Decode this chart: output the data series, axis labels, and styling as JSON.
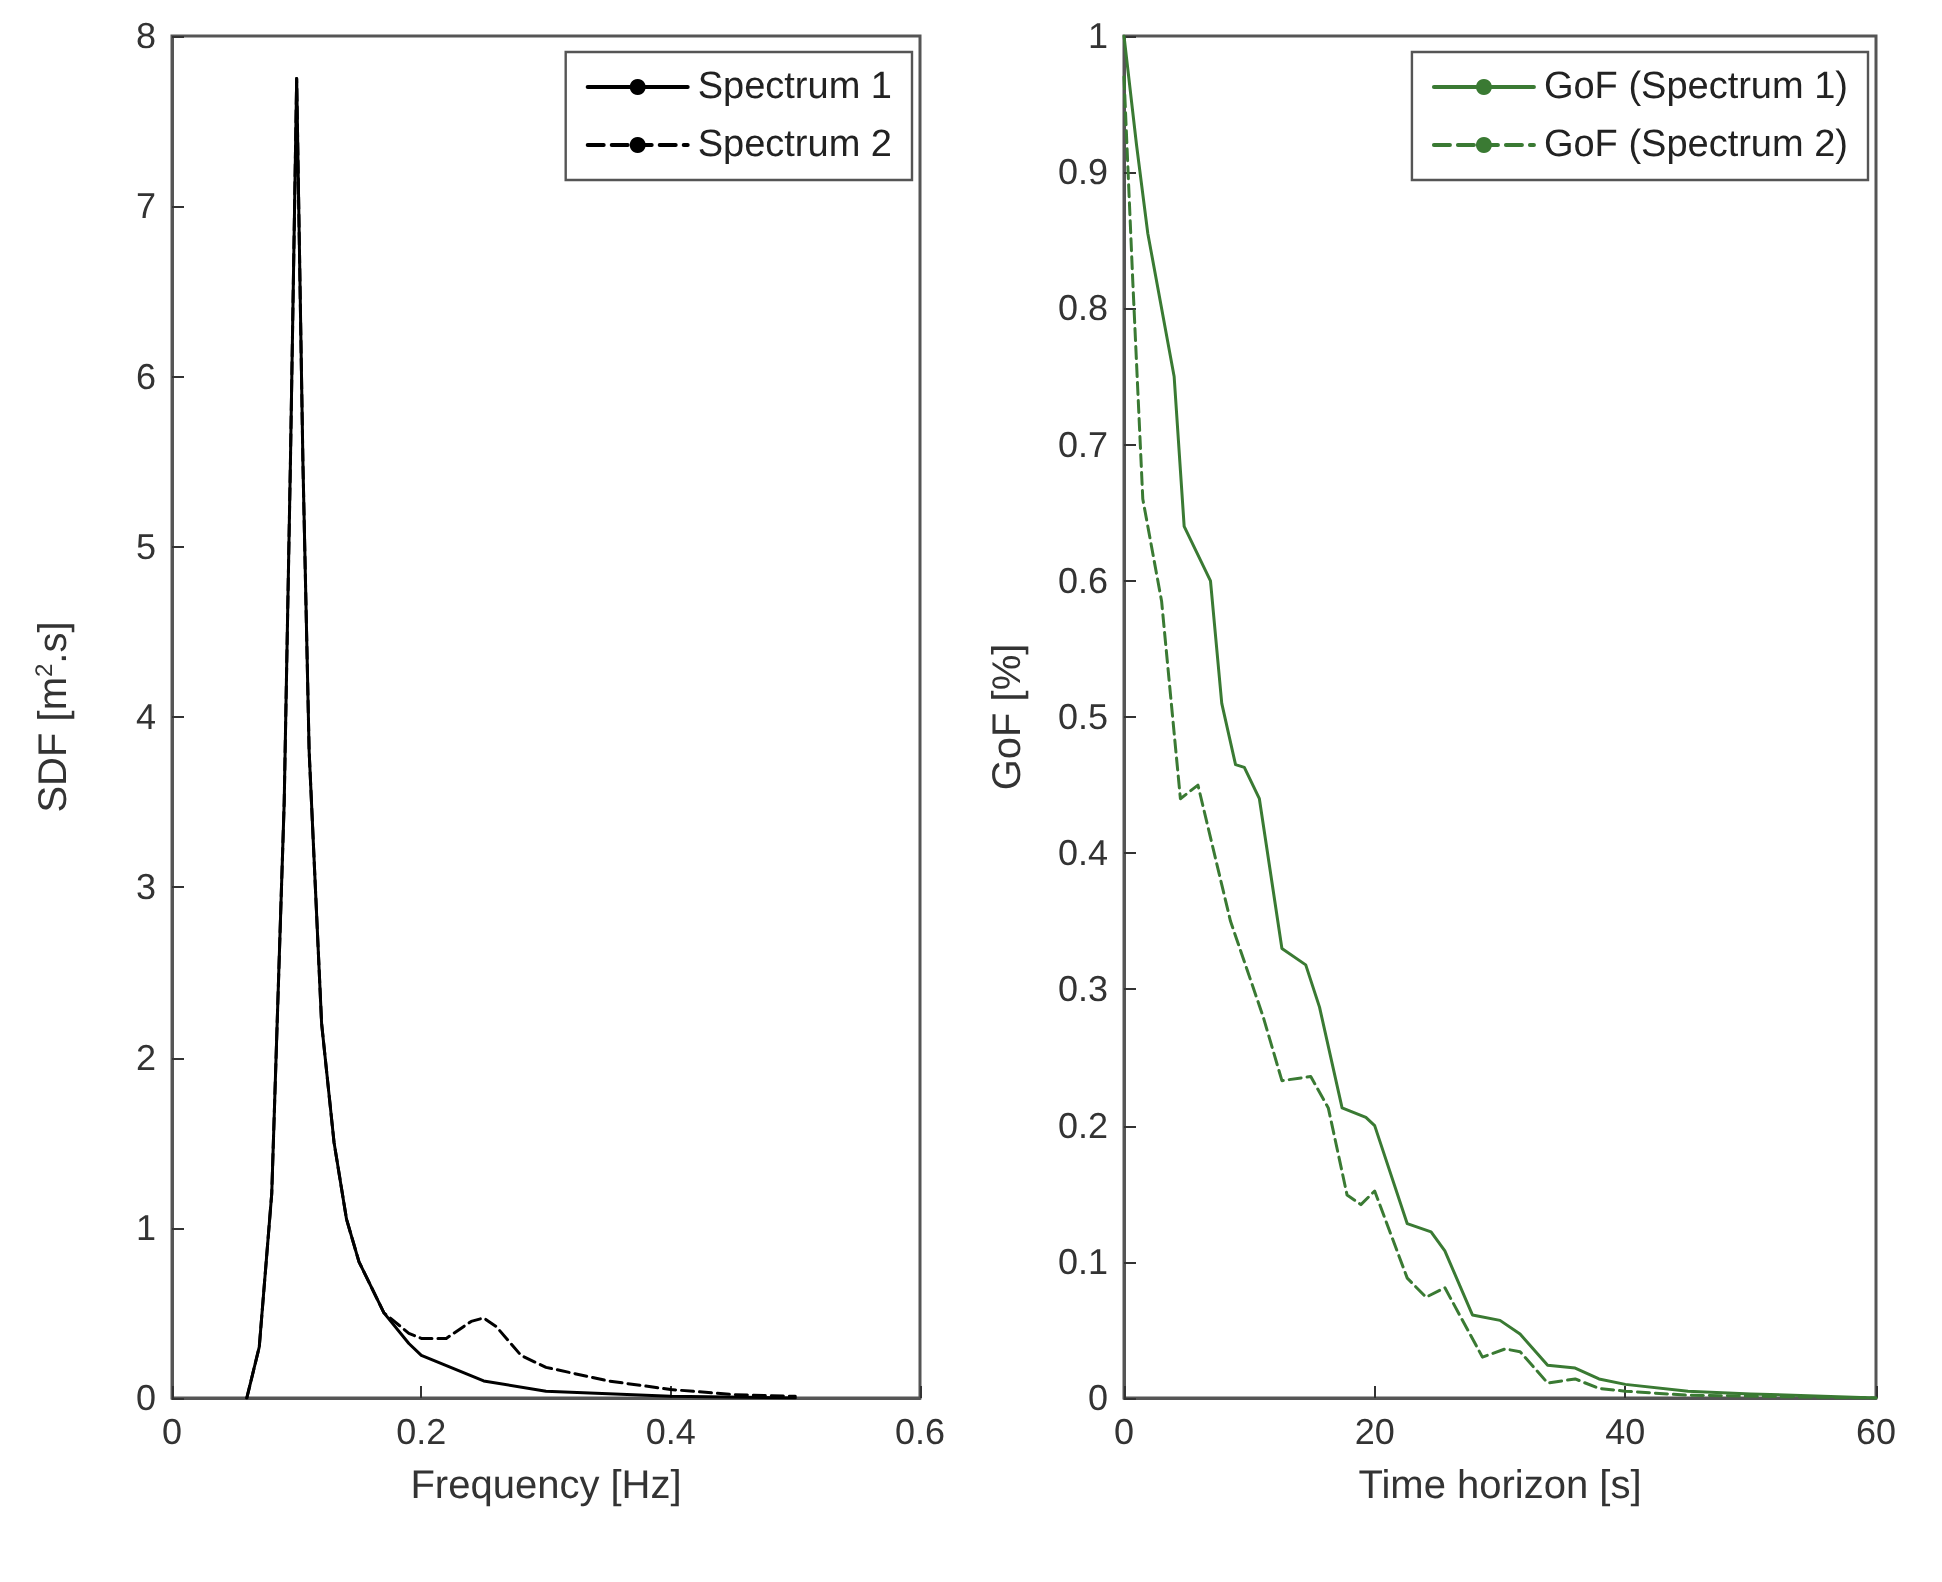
{
  "chart_data": [
    {
      "type": "line",
      "xlabel": "Frequency [Hz]",
      "ylabel": "SDF [m$^{2}$.s]",
      "xlim": [
        0,
        0.6
      ],
      "ylim": [
        0,
        8
      ],
      "xticks": [
        0,
        0.2,
        0.4,
        0.6
      ],
      "yticks": [
        0,
        1,
        2,
        3,
        4,
        5,
        6,
        7,
        8
      ],
      "legend": "top right",
      "series": [
        {
          "name": "Spectrum 1",
          "color": "#000000",
          "line_style": "solid",
          "x": [
            0.06,
            0.07,
            0.08,
            0.09,
            0.095,
            0.1,
            0.105,
            0.11,
            0.12,
            0.13,
            0.14,
            0.15,
            0.17,
            0.19,
            0.2,
            0.25,
            0.3,
            0.4,
            0.5
          ],
          "values": [
            0,
            0.3,
            1.2,
            3.5,
            5.5,
            7.75,
            5.5,
            3.8,
            2.2,
            1.5,
            1.05,
            0.8,
            0.5,
            0.32,
            0.25,
            0.1,
            0.04,
            0.01,
            0
          ]
        },
        {
          "name": "Spectrum 2",
          "color": "#000000",
          "line_style": "dashed",
          "x": [
            0.06,
            0.07,
            0.08,
            0.09,
            0.095,
            0.1,
            0.105,
            0.11,
            0.12,
            0.13,
            0.14,
            0.15,
            0.17,
            0.19,
            0.2,
            0.22,
            0.24,
            0.25,
            0.26,
            0.28,
            0.3,
            0.35,
            0.4,
            0.45,
            0.5
          ],
          "values": [
            0,
            0.3,
            1.2,
            3.5,
            5.5,
            7.75,
            5.5,
            3.8,
            2.2,
            1.5,
            1.05,
            0.8,
            0.5,
            0.38,
            0.35,
            0.35,
            0.45,
            0.47,
            0.42,
            0.25,
            0.18,
            0.1,
            0.05,
            0.02,
            0.01
          ]
        }
      ]
    },
    {
      "type": "line",
      "xlabel": "Time horizon [s]",
      "ylabel": "GoF [%]",
      "xlim": [
        0,
        60
      ],
      "ylim": [
        0,
        1
      ],
      "xticks": [
        0,
        20,
        40,
        60
      ],
      "yticks": [
        0,
        0.1,
        0.2,
        0.3,
        0.4,
        0.5,
        0.6,
        0.7,
        0.8,
        0.9,
        1
      ],
      "legend": "top right",
      "series": [
        {
          "name": "GoF (Spectrum 1)",
          "color": "#3a7a33",
          "line_style": "solid",
          "x": [
            0,
            1,
            1.9,
            4,
            4.8,
            6.9,
            7.8,
            8.9,
            9.6,
            10.8,
            12.6,
            14.5,
            15.6,
            17.4,
            19.3,
            20,
            22.6,
            24.5,
            25.6,
            27.8,
            30,
            31.6,
            33.8,
            36,
            37.9,
            40,
            45,
            50,
            60
          ],
          "values": [
            1,
            0.92,
            0.855,
            0.75,
            0.64,
            0.6,
            0.51,
            0.465,
            0.463,
            0.44,
            0.33,
            0.318,
            0.287,
            0.213,
            0.206,
            0.2,
            0.128,
            0.122,
            0.108,
            0.061,
            0.057,
            0.047,
            0.024,
            0.022,
            0.014,
            0.01,
            0.005,
            0.003,
            0
          ]
        },
        {
          "name": "GoF (Spectrum 2)",
          "color": "#3a7a33",
          "line_style": "dashed",
          "x": [
            0,
            0.7,
            1.5,
            3,
            4.5,
            5.9,
            8.5,
            11.1,
            12.6,
            14.9,
            16.3,
            17.8,
            18.9,
            20,
            22.6,
            24.1,
            25.6,
            28.6,
            30.4,
            31.6,
            33.8,
            36,
            37.9,
            40,
            45,
            60
          ],
          "values": [
            0.97,
            0.82,
            0.66,
            0.585,
            0.44,
            0.45,
            0.35,
            0.28,
            0.233,
            0.236,
            0.213,
            0.149,
            0.142,
            0.152,
            0.088,
            0.074,
            0.081,
            0.03,
            0.036,
            0.034,
            0.011,
            0.014,
            0.007,
            0.005,
            0.002,
            0
          ]
        }
      ]
    }
  ]
}
